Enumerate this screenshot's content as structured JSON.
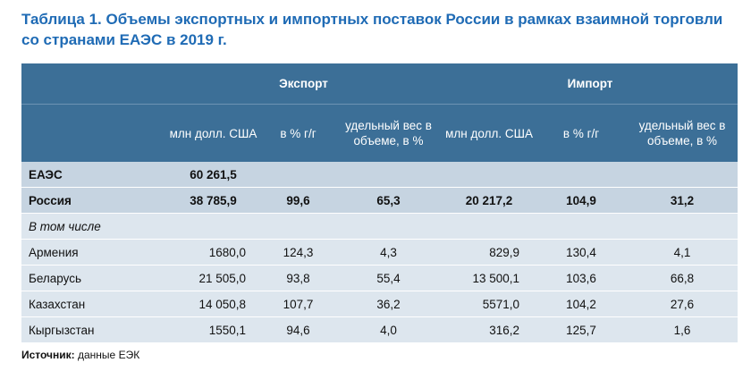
{
  "title": "Таблица 1. Объемы экспортных и импортных поставок России в рамках взаимной торговли со странами ЕАЭС в 2019 г.",
  "groups": {
    "export": "Экспорт",
    "import": "Импорт"
  },
  "columns": [
    "млн долл. США",
    "в % г/г",
    "удельный вес в объеме, в %",
    "млн долл. США",
    "в % г/г",
    "удельный вес в объеме, в %"
  ],
  "rows": [
    {
      "name": "ЕАЭС",
      "values": [
        "60 261,5",
        "",
        "",
        "",
        "",
        ""
      ]
    },
    {
      "name": "Россия",
      "values": [
        "38 785,9",
        "99,6",
        "65,3",
        "20 217,2",
        "104,9",
        "31,2"
      ]
    },
    {
      "name": "В том числе",
      "values": [
        "",
        "",
        "",
        "",
        "",
        ""
      ]
    },
    {
      "name": "Армения",
      "values": [
        "1680,0",
        "124,3",
        "4,3",
        "829,9",
        "130,4",
        "4,1"
      ]
    },
    {
      "name": "Беларусь",
      "values": [
        "21 505,0",
        "93,8",
        "55,4",
        "13 500,1",
        "103,6",
        "66,8"
      ]
    },
    {
      "name": "Казахстан",
      "values": [
        "14 050,8",
        "107,7",
        "36,2",
        "5571,0",
        "104,2",
        "27,6"
      ]
    },
    {
      "name": "Кыргызстан",
      "values": [
        "1550,1",
        "94,6",
        "4,0",
        "316,2",
        "125,7",
        "1,6"
      ]
    }
  ],
  "source": {
    "label": "Источник:",
    "text": "данные ЕЭК"
  }
}
